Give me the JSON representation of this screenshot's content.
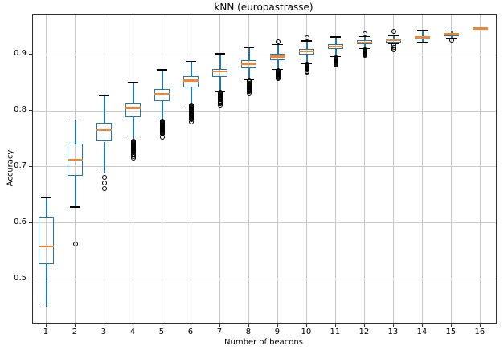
{
  "chart_data": {
    "type": "boxplot",
    "title": "kNN (europastrasse)",
    "xlabel": "Number of beacons",
    "ylabel": "Accuracy",
    "categories": [
      "1",
      "2",
      "3",
      "4",
      "5",
      "6",
      "7",
      "8",
      "9",
      "10",
      "11",
      "12",
      "13",
      "14",
      "15",
      "16"
    ],
    "yticks": [
      0.5,
      0.6,
      0.7,
      0.8,
      0.9
    ],
    "ylim": [
      0.422,
      0.9706
    ],
    "xlim": [
      0.53,
      16.53
    ],
    "grid": true,
    "legend": "none",
    "colors": {
      "box_edge": "#1f77b4",
      "median": "#ef8636",
      "whisker": "#1f77b4",
      "cap": "#000000",
      "flier": "#000000",
      "grid": "#c9c9c9",
      "spine": "#2e2e2e",
      "background": "#ffffff",
      "text": "#000000"
    },
    "boxes": [
      {
        "x": 1,
        "whislo": 0.45,
        "q1": 0.527,
        "med": 0.558,
        "q3": 0.611,
        "whishi": 0.645,
        "blob": null,
        "fliers_below": [],
        "fliers_above": []
      },
      {
        "x": 2,
        "whislo": 0.628,
        "q1": 0.684,
        "med": 0.713,
        "q3": 0.741,
        "whishi": 0.784,
        "blob": null,
        "fliers_below": [
          0.563
        ],
        "fliers_above": []
      },
      {
        "x": 3,
        "whislo": 0.689,
        "q1": 0.745,
        "med": 0.766,
        "q3": 0.779,
        "whishi": 0.828,
        "blob": null,
        "fliers_below": [
          0.681,
          0.671,
          0.661
        ],
        "fliers_above": []
      },
      {
        "x": 4,
        "whislo": 0.748,
        "q1": 0.789,
        "med": 0.805,
        "q3": 0.814,
        "whishi": 0.85,
        "blob": [
          0.722,
          0.746
        ],
        "fliers_below": [
          0.718,
          0.715
        ],
        "fliers_above": []
      },
      {
        "x": 5,
        "whislo": 0.784,
        "q1": 0.818,
        "med": 0.83,
        "q3": 0.839,
        "whishi": 0.873,
        "blob": [
          0.757,
          0.782
        ],
        "fliers_below": [
          0.753
        ],
        "fliers_above": []
      },
      {
        "x": 6,
        "whislo": 0.812,
        "q1": 0.841,
        "med": 0.854,
        "q3": 0.862,
        "whishi": 0.888,
        "blob": [
          0.784,
          0.81
        ],
        "fliers_below": [
          0.78
        ],
        "fliers_above": []
      },
      {
        "x": 7,
        "whislo": 0.835,
        "q1": 0.861,
        "med": 0.87,
        "q3": 0.874,
        "whishi": 0.902,
        "blob": [
          0.813,
          0.833
        ],
        "fliers_below": [
          0.81
        ],
        "fliers_above": []
      },
      {
        "x": 8,
        "whislo": 0.856,
        "q1": 0.876,
        "med": 0.884,
        "q3": 0.89,
        "whishi": 0.913,
        "blob": [
          0.834,
          0.854
        ],
        "fliers_below": [
          0.831
        ],
        "fliers_above": []
      },
      {
        "x": 9,
        "whislo": 0.874,
        "q1": 0.89,
        "med": 0.897,
        "q3": 0.902,
        "whishi": 0.918,
        "blob": [
          0.856,
          0.872
        ],
        "fliers_below": [],
        "fliers_above": [
          0.924
        ]
      },
      {
        "x": 10,
        "whislo": 0.885,
        "q1": 0.9,
        "med": 0.906,
        "q3": 0.911,
        "whishi": 0.925,
        "blob": [
          0.869,
          0.883
        ],
        "fliers_below": [],
        "fliers_above": [
          0.931
        ]
      },
      {
        "x": 11,
        "whislo": 0.897,
        "q1": 0.911,
        "med": 0.915,
        "q3": 0.919,
        "whishi": 0.932,
        "blob": [
          0.881,
          0.895
        ],
        "fliers_below": [],
        "fliers_above": []
      },
      {
        "x": 12,
        "whislo": 0.911,
        "q1": 0.919,
        "med": 0.922,
        "q3": 0.926,
        "whishi": 0.933,
        "blob": [
          0.898,
          0.909
        ],
        "fliers_below": [],
        "fliers_above": [
          0.938
        ]
      },
      {
        "x": 13,
        "whislo": 0.92,
        "q1": 0.922,
        "med": 0.926,
        "q3": 0.928,
        "whishi": 0.934,
        "blob": null,
        "fliers_below": [
          0.917,
          0.914,
          0.911,
          0.909
        ],
        "fliers_above": [
          0.942
        ]
      },
      {
        "x": 14,
        "whislo": 0.922,
        "q1": 0.928,
        "med": 0.931,
        "q3": 0.934,
        "whishi": 0.944,
        "blob": null,
        "fliers_below": [],
        "fliers_above": []
      },
      {
        "x": 15,
        "whislo": 0.93,
        "q1": 0.933,
        "med": 0.937,
        "q3": 0.939,
        "whishi": 0.943,
        "blob": null,
        "fliers_below": [
          0.926
        ],
        "fliers_above": []
      },
      {
        "x": 16,
        "whislo": 0.947,
        "q1": 0.947,
        "med": 0.947,
        "q3": 0.947,
        "whishi": 0.947,
        "blob": null,
        "fliers_below": [],
        "fliers_above": []
      }
    ]
  }
}
